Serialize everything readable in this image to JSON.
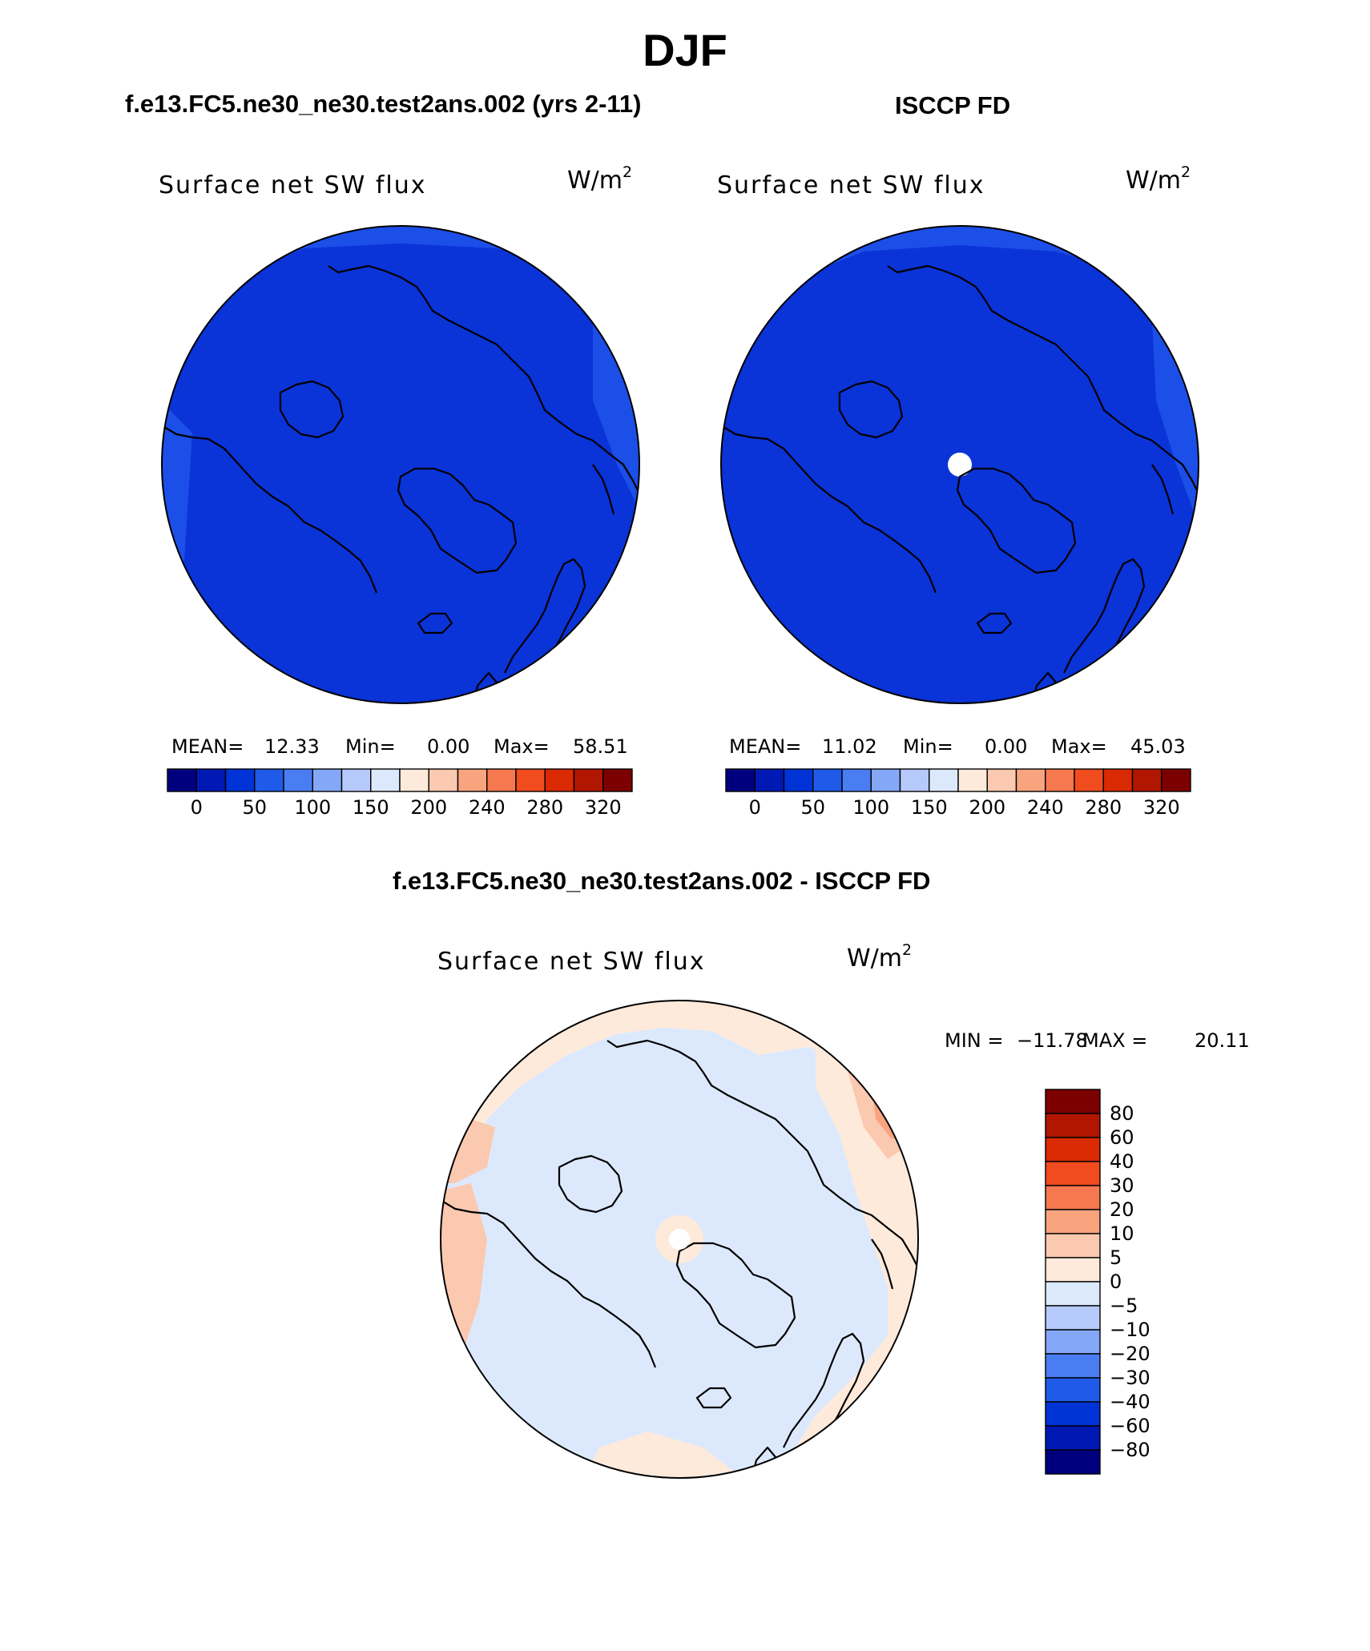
{
  "page": {
    "title": "DJF",
    "subtitle_model": "f.e13.FC5.ne30_ne30.test2ans.002 (yrs 2-11)",
    "subtitle_obs": "ISCCP FD",
    "subtitle_diff": "f.e13.FC5.ne30_ne30.test2ans.002 - ISCCP FD"
  },
  "colors": {
    "abs_scale": [
      "#00007f",
      "#0019b4",
      "#0033d6",
      "#1f5be8",
      "#4a7df2",
      "#85a7f7",
      "#b5cafa",
      "#dce9fd",
      "#feeadb",
      "#fbc9b0",
      "#f8a47f",
      "#f6784e",
      "#f04c1e",
      "#d92a04",
      "#b01600",
      "#7d0000"
    ],
    "diff_scale": [
      "#00007f",
      "#0019b4",
      "#0033d6",
      "#1f5be8",
      "#4a7df2",
      "#85a7f7",
      "#b5cafa",
      "#dce9fd",
      "#feeadb",
      "#fbc9b0",
      "#f8a47f",
      "#f6784e",
      "#f04c1e",
      "#d92a04",
      "#b01600",
      "#7d0000"
    ],
    "map_base": "#0a33d8",
    "map_band": "#1c4ee8",
    "diff_base": "#dce9fd",
    "diff_warm": "#feeadb",
    "diff_warm2": "#fbc9b0",
    "diff_warm3": "#f8a47f"
  },
  "chart_data": [
    {
      "type": "heatmap",
      "projection": "north-polar-stereographic",
      "title": "Surface net SW flux",
      "units": "W/m",
      "units_exp": "2",
      "stats": {
        "mean": "12.33",
        "min": "0.00",
        "max": "58.51"
      },
      "colorbar": {
        "orientation": "horizontal",
        "tick_labels": [
          "0",
          "50",
          "100",
          "150",
          "200",
          "240",
          "280",
          "320"
        ]
      }
    },
    {
      "type": "heatmap",
      "projection": "north-polar-stereographic",
      "title": "Surface net SW flux",
      "units": "W/m",
      "units_exp": "2",
      "stats": {
        "mean": "11.02",
        "min": "0.00",
        "max": "45.03"
      },
      "colorbar": {
        "orientation": "horizontal",
        "tick_labels": [
          "0",
          "50",
          "100",
          "150",
          "200",
          "240",
          "280",
          "320"
        ]
      }
    },
    {
      "type": "heatmap",
      "projection": "north-polar-stereographic",
      "title": "Surface net SW flux",
      "units": "W/m",
      "units_exp": "2",
      "stats": {
        "min": "−11.78",
        "max": "20.11"
      },
      "colorbar": {
        "orientation": "vertical",
        "tick_labels": [
          "80",
          "60",
          "40",
          "30",
          "20",
          "10",
          "5",
          "0",
          "−5",
          "−10",
          "−20",
          "−30",
          "−40",
          "−60",
          "−80"
        ]
      }
    }
  ],
  "labels": {
    "mean_label": "MEAN=",
    "min_label": "Min=",
    "max_label": "Max=",
    "diff_min_label": "MIN =",
    "diff_max_label": "MAX ="
  }
}
